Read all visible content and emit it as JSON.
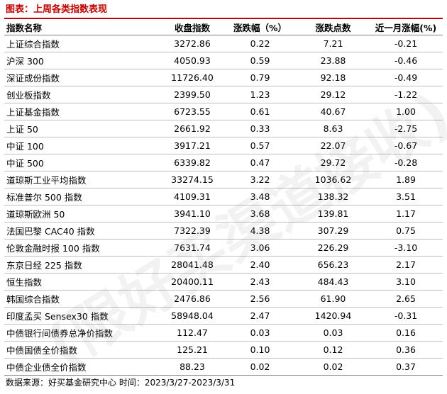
{
  "title": "图表：上周各类指数表现",
  "columns": [
    "指数名称",
    "收盘指数",
    "涨跌幅（%）",
    "涨跌点数",
    "近一月涨幅(%)"
  ],
  "rows": [
    [
      "上证综合指数",
      "3272.86",
      "0.22",
      "7.21",
      "-0.21"
    ],
    [
      "沪深 300",
      "4050.93",
      "0.59",
      "23.88",
      "-0.46"
    ],
    [
      "深证成份指数",
      "11726.40",
      "0.79",
      "92.18",
      "-0.49"
    ],
    [
      "创业板指数",
      "2399.50",
      "1.23",
      "29.12",
      "-1.22"
    ],
    [
      "上证基金指数",
      "6723.55",
      "0.61",
      "40.67",
      "1.00"
    ],
    [
      "上证 50",
      "2661.92",
      "0.33",
      "8.63",
      "-2.75"
    ],
    [
      "中证 100",
      "3917.21",
      "0.57",
      "22.07",
      "-0.67"
    ],
    [
      "中证 500",
      "6339.82",
      "0.47",
      "29.72",
      "-0.28"
    ],
    [
      "道琼斯工业平均指数",
      "33274.15",
      "3.22",
      "1036.62",
      "1.89"
    ],
    [
      "标准普尔 500 指数",
      "4109.31",
      "3.48",
      "138.32",
      "3.51"
    ],
    [
      "道琼斯欧洲 50",
      "3941.10",
      "3.68",
      "139.81",
      "1.17"
    ],
    [
      "法国巴黎 CAC40 指数",
      "7322.39",
      "4.38",
      "307.29",
      "0.75"
    ],
    [
      "伦敦金融时报 100 指数",
      "7631.74",
      "3.06",
      "226.29",
      "-3.10"
    ],
    [
      "东京日经 225 指数",
      "28041.48",
      "2.40",
      "656.23",
      "2.17"
    ],
    [
      "恒生指数",
      "20400.11",
      "2.43",
      "484.43",
      "3.10"
    ],
    [
      "韩国综合指数",
      "2476.86",
      "2.56",
      "61.90",
      "2.65"
    ],
    [
      "印度孟买 Sensex30 指数",
      "58948.04",
      "2.47",
      "1420.94",
      "-0.31"
    ],
    [
      "中债银行间债券总净价指数",
      "112.47",
      "0.03",
      "0.03",
      "0.16"
    ],
    [
      "中债国债全价指数",
      "125.21",
      "0.10",
      "0.12",
      "0.36"
    ],
    [
      "中债企业债全价指数",
      "88.23",
      "0.02",
      "0.02",
      "0.37"
    ]
  ],
  "footer": "数据来源：好买基金研究中心 时间：2023/3/27-2023/3/31",
  "watermark": "(限好买渠道接收)",
  "colors": {
    "title": "#c00000",
    "rule": "#c00000"
  }
}
